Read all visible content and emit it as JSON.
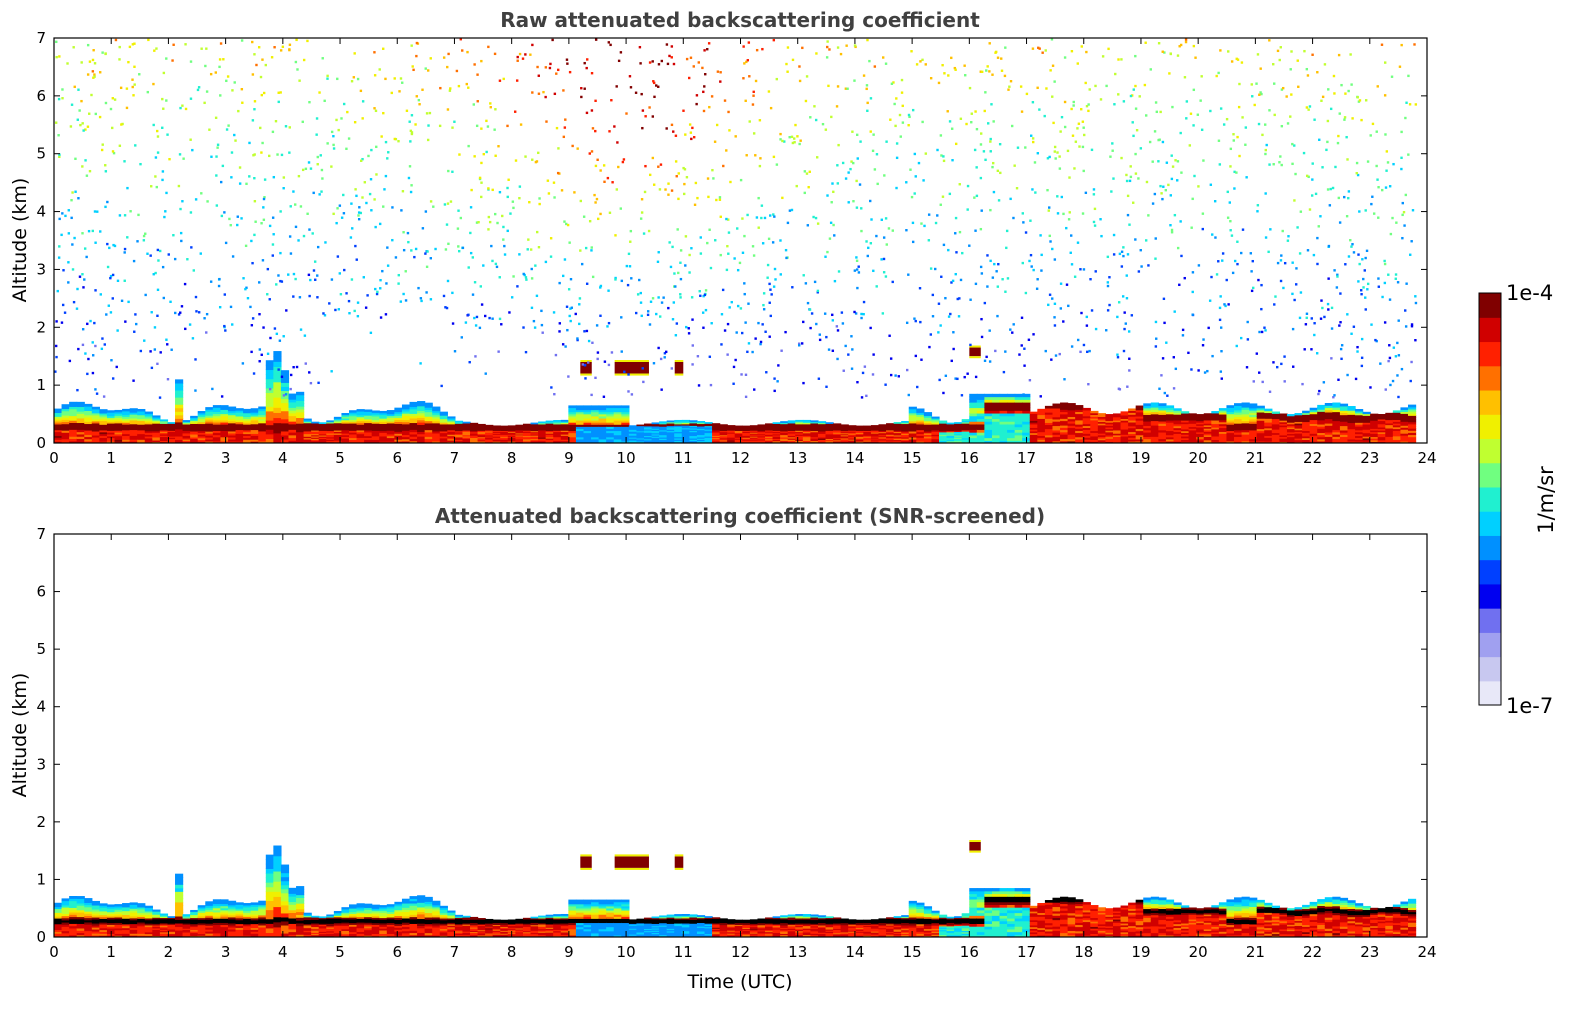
{
  "chart_data": [
    {
      "type": "heatmap",
      "title": "Raw attenuated backscattering coefficient",
      "xlabel": "",
      "ylabel": "Altitude (km)",
      "xlim": [
        0,
        24
      ],
      "ylim": [
        0,
        7
      ],
      "xticks": [
        "0",
        "1",
        "2",
        "3",
        "4",
        "5",
        "6",
        "7",
        "8",
        "9",
        "10",
        "11",
        "12",
        "13",
        "14",
        "15",
        "16",
        "17",
        "18",
        "19",
        "20",
        "21",
        "22",
        "23",
        "24"
      ],
      "yticks": [
        "0",
        "1",
        "2",
        "3",
        "4",
        "5",
        "6",
        "7"
      ],
      "features": [
        {
          "x_range": [
            0,
            23.8
          ],
          "y_range": [
            0.1,
            0.6
          ],
          "value": "1e-4",
          "note": "boundary layer"
        },
        {
          "x_range": [
            9.2,
            11.0
          ],
          "y_range": [
            1.2,
            1.4
          ],
          "value": "1e-4",
          "note": "cloud layer"
        },
        {
          "x_range": [
            16.0,
            16.2
          ],
          "y_range": [
            1.5,
            1.65
          ],
          "value": "1e-4",
          "note": "cloud layer"
        },
        {
          "x_range": [
            0,
            23.8
          ],
          "y_range": [
            2,
            7
          ],
          "value": "noise",
          "note": "high noise aloft"
        }
      ]
    },
    {
      "type": "heatmap",
      "title": "Attenuated backscattering coefficient (SNR-screened)",
      "xlabel": "Time (UTC)",
      "ylabel": "Altitude (km)",
      "xlim": [
        0,
        24
      ],
      "ylim": [
        0,
        7
      ],
      "xticks": [
        "0",
        "1",
        "2",
        "3",
        "4",
        "5",
        "6",
        "7",
        "8",
        "9",
        "10",
        "11",
        "12",
        "13",
        "14",
        "15",
        "16",
        "17",
        "18",
        "19",
        "20",
        "21",
        "22",
        "23",
        "24"
      ],
      "yticks": [
        "0",
        "1",
        "2",
        "3",
        "4",
        "5",
        "6",
        "7"
      ],
      "features": [
        {
          "x_range": [
            0,
            23.8
          ],
          "y_range": [
            0.1,
            0.6
          ],
          "value": "1e-4",
          "note": "boundary layer"
        },
        {
          "x_range": [
            9.2,
            11.0
          ],
          "y_range": [
            1.2,
            1.4
          ],
          "value": "1e-4",
          "note": "cloud layer"
        },
        {
          "x_range": [
            16.0,
            16.2
          ],
          "y_range": [
            1.5,
            1.65
          ],
          "value": "1e-4",
          "note": "cloud layer"
        }
      ]
    }
  ],
  "colorbar": {
    "label": "1/m/sr",
    "max_label": "1e-4",
    "min_label": "1e-7",
    "colors": [
      "#e8e8f8",
      "#c8c8f0",
      "#a0a0f0",
      "#7070f0",
      "#0000f0",
      "#0040ff",
      "#0090ff",
      "#00d0ff",
      "#20f0d0",
      "#70ff80",
      "#c0ff30",
      "#f0f000",
      "#ffc000",
      "#ff7000",
      "#ff2000",
      "#d00000",
      "#800000"
    ]
  }
}
